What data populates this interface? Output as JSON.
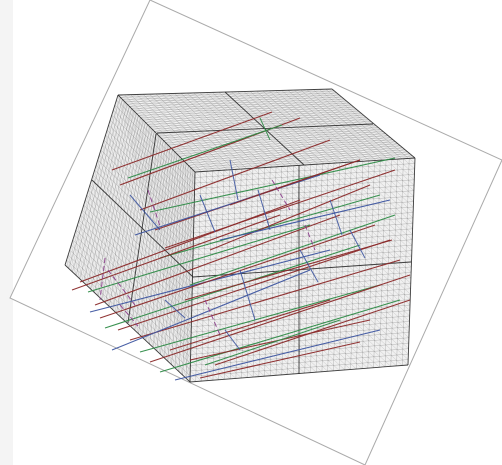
{
  "figure": {
    "background": "#ffffff",
    "sheet_fill": "#ffffff",
    "sheet_border": "#aaaaaa",
    "mesh_color": "#555555",
    "block_edge_color": "#222222",
    "left_strip_color": "#f4f4f4"
  },
  "fracture_sets": [
    {
      "name": "red",
      "color": "#8b2a2a",
      "style": "solid"
    },
    {
      "name": "green",
      "color": "#2e8b47",
      "style": "solid"
    },
    {
      "name": "blue",
      "color": "#3d55a0",
      "style": "solid"
    },
    {
      "name": "purple",
      "color": "#8a3a8a",
      "style": "dashed"
    }
  ]
}
